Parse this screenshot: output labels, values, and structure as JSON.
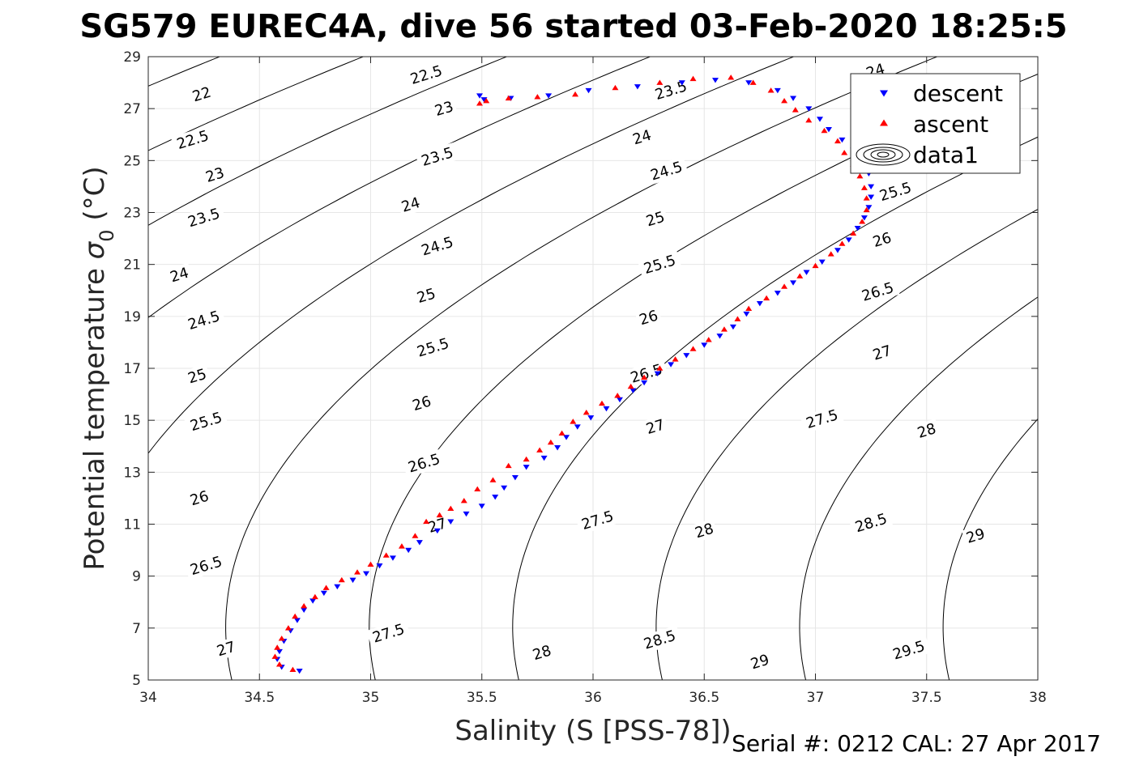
{
  "chart_data": {
    "type": "scatter",
    "title": "SG579 EUREC4A, dive 56 started 03-Feb-2020 18:25:5",
    "xlabel": "Salinity (S [PSS-78])",
    "ylabel": "Potential temperature",
    "ylabel_symbol": "σ",
    "ylabel_subscript": "0",
    "ylabel_unit": "(°C)",
    "xlim": [
      34,
      38
    ],
    "ylim": [
      5,
      29
    ],
    "x_ticks": [
      34,
      34.5,
      35,
      35.5,
      36,
      36.5,
      37,
      37.5,
      38
    ],
    "x_tick_labels": [
      "34",
      "34.5",
      "35",
      "35.5",
      "36",
      "36.5",
      "37",
      "37.5",
      "38"
    ],
    "y_ticks": [
      5,
      7,
      9,
      11,
      13,
      15,
      17,
      19,
      21,
      23,
      25,
      27,
      29
    ],
    "y_tick_labels": [
      "5",
      "7",
      "9",
      "11",
      "13",
      "15",
      "17",
      "19",
      "21",
      "23",
      "25",
      "27",
      "29"
    ],
    "grid": true,
    "legend_position": "top-right",
    "legend": [
      {
        "label": "descent",
        "marker": "triangle-down",
        "color": "#0000ff"
      },
      {
        "label": "ascent",
        "marker": "triangle-up",
        "color": "#ff0000"
      },
      {
        "label": "data1",
        "marker": "contour",
        "color": "#000000"
      }
    ],
    "contours": {
      "levels": [
        22,
        22.5,
        23,
        23.5,
        24,
        24.5,
        25,
        25.5,
        26,
        26.5,
        27,
        27.5,
        28,
        28.5,
        29,
        29.5
      ],
      "labels": [
        {
          "text": "22",
          "s": 34.24,
          "t": 27.55
        },
        {
          "text": "22.5",
          "s": 34.2,
          "t": 25.8
        },
        {
          "text": "23",
          "s": 34.3,
          "t": 24.45
        },
        {
          "text": "23.5",
          "s": 34.25,
          "t": 22.8
        },
        {
          "text": "24",
          "s": 34.14,
          "t": 20.6
        },
        {
          "text": "24.5",
          "s": 34.25,
          "t": 18.85
        },
        {
          "text": "25",
          "s": 34.22,
          "t": 16.7
        },
        {
          "text": "25.5",
          "s": 34.26,
          "t": 14.95
        },
        {
          "text": "26",
          "s": 34.23,
          "t": 12
        },
        {
          "text": "26.5",
          "s": 34.26,
          "t": 9.4
        },
        {
          "text": "27",
          "s": 34.35,
          "t": 6.2
        },
        {
          "text": "22.5",
          "s": 35.25,
          "t": 28.3
        },
        {
          "text": "23",
          "s": 35.33,
          "t": 27
        },
        {
          "text": "23.5",
          "s": 35.3,
          "t": 25.15
        },
        {
          "text": "24",
          "s": 35.18,
          "t": 23.3
        },
        {
          "text": "24.5",
          "s": 35.3,
          "t": 21.7
        },
        {
          "text": "25",
          "s": 35.25,
          "t": 19.8
        },
        {
          "text": "25.5",
          "s": 35.28,
          "t": 17.8
        },
        {
          "text": "26",
          "s": 35.23,
          "t": 15.65
        },
        {
          "text": "26.5",
          "s": 35.24,
          "t": 13.35
        },
        {
          "text": "27",
          "s": 35.3,
          "t": 10.95
        },
        {
          "text": "27.5",
          "s": 35.08,
          "t": 6.8
        },
        {
          "text": "23.5",
          "s": 36.35,
          "t": 27.7
        },
        {
          "text": "24",
          "s": 36.22,
          "t": 25.9
        },
        {
          "text": "24.5",
          "s": 36.33,
          "t": 24.6
        },
        {
          "text": "25",
          "s": 36.28,
          "t": 22.75
        },
        {
          "text": "25.5",
          "s": 36.3,
          "t": 21
        },
        {
          "text": "26",
          "s": 36.25,
          "t": 18.95
        },
        {
          "text": "26.5",
          "s": 36.24,
          "t": 16.8
        },
        {
          "text": "27",
          "s": 36.28,
          "t": 14.75
        },
        {
          "text": "27.5",
          "s": 36.02,
          "t": 11.15
        },
        {
          "text": "28",
          "s": 35.77,
          "t": 6.05
        },
        {
          "text": "24",
          "s": 37.27,
          "t": 28.45
        },
        {
          "text": "25.5",
          "s": 37.36,
          "t": 23.8
        },
        {
          "text": "26",
          "s": 37.3,
          "t": 21.95
        },
        {
          "text": "26.5",
          "s": 37.28,
          "t": 19.95
        },
        {
          "text": "27",
          "s": 37.3,
          "t": 17.6
        },
        {
          "text": "27.5",
          "s": 37.03,
          "t": 15.05
        },
        {
          "text": "28",
          "s": 36.5,
          "t": 10.75
        },
        {
          "text": "28.5",
          "s": 36.3,
          "t": 6.55
        },
        {
          "text": "28",
          "s": 37.5,
          "t": 14.6
        },
        {
          "text": "28.5",
          "s": 37.25,
          "t": 11.05
        },
        {
          "text": "29",
          "s": 36.75,
          "t": 5.7
        },
        {
          "text": "29",
          "s": 37.72,
          "t": 10.55
        },
        {
          "text": "29.5",
          "s": 37.42,
          "t": 6.15
        }
      ]
    },
    "series": [
      {
        "name": "descent",
        "marker": "triangle-down",
        "color": "#0000ff",
        "points": [
          [
            34.68,
            5.35
          ],
          [
            34.6,
            5.5
          ],
          [
            34.58,
            5.8
          ],
          [
            34.59,
            6.1
          ],
          [
            34.61,
            6.5
          ],
          [
            34.64,
            6.9
          ],
          [
            34.67,
            7.3
          ],
          [
            34.7,
            7.7
          ],
          [
            34.74,
            8.05
          ],
          [
            34.79,
            8.35
          ],
          [
            34.85,
            8.6
          ],
          [
            34.92,
            8.85
          ],
          [
            34.98,
            9.1
          ],
          [
            35.04,
            9.4
          ],
          [
            35.1,
            9.7
          ],
          [
            35.17,
            10
          ],
          [
            35.22,
            10.3
          ],
          [
            35.3,
            10.75
          ],
          [
            35.36,
            11.1
          ],
          [
            35.43,
            11.4
          ],
          [
            35.5,
            11.7
          ],
          [
            35.56,
            12.05
          ],
          [
            35.6,
            12.4
          ],
          [
            35.65,
            12.8
          ],
          [
            35.7,
            13.2
          ],
          [
            35.78,
            13.55
          ],
          [
            35.84,
            13.95
          ],
          [
            35.88,
            14.35
          ],
          [
            35.93,
            14.75
          ],
          [
            35.99,
            15.1
          ],
          [
            36.06,
            15.45
          ],
          [
            36.12,
            15.8
          ],
          [
            36.18,
            16.15
          ],
          [
            36.23,
            16.45
          ],
          [
            36.29,
            16.8
          ],
          [
            36.35,
            17.15
          ],
          [
            36.42,
            17.5
          ],
          [
            36.5,
            17.9
          ],
          [
            36.57,
            18.25
          ],
          [
            36.63,
            18.6
          ],
          [
            36.69,
            19.1
          ],
          [
            36.75,
            19.5
          ],
          [
            36.83,
            19.9
          ],
          [
            36.9,
            20.3
          ],
          [
            36.96,
            20.7
          ],
          [
            37.03,
            21.1
          ],
          [
            37.1,
            21.55
          ],
          [
            37.15,
            21.95
          ],
          [
            37.19,
            22.4
          ],
          [
            37.22,
            22.8
          ],
          [
            37.24,
            23.2
          ],
          [
            37.25,
            23.6
          ],
          [
            37.25,
            24
          ],
          [
            37.24,
            24.5
          ],
          [
            37.22,
            25
          ],
          [
            37.17,
            25.4
          ],
          [
            37.12,
            25.8
          ],
          [
            37.06,
            26.2
          ],
          [
            37.02,
            26.6
          ],
          [
            36.97,
            27
          ],
          [
            36.9,
            27.4
          ],
          [
            36.83,
            27.7
          ],
          [
            36.7,
            28
          ],
          [
            36.55,
            28.1
          ],
          [
            36.4,
            28
          ],
          [
            36.2,
            27.85
          ],
          [
            35.98,
            27.7
          ],
          [
            35.8,
            27.5
          ],
          [
            35.63,
            27.4
          ],
          [
            35.51,
            27.35
          ],
          [
            35.49,
            27.5
          ]
        ]
      },
      {
        "name": "ascent",
        "marker": "triangle-up",
        "color": "#ff0000",
        "points": [
          [
            34.65,
            5.4
          ],
          [
            34.59,
            5.6
          ],
          [
            34.57,
            5.9
          ],
          [
            34.58,
            6.25
          ],
          [
            34.6,
            6.6
          ],
          [
            34.63,
            7
          ],
          [
            34.66,
            7.45
          ],
          [
            34.7,
            7.85
          ],
          [
            34.75,
            8.2
          ],
          [
            34.8,
            8.55
          ],
          [
            34.87,
            8.85
          ],
          [
            34.94,
            9.15
          ],
          [
            35,
            9.45
          ],
          [
            35.07,
            9.8
          ],
          [
            35.14,
            10.15
          ],
          [
            35.2,
            10.55
          ],
          [
            35.25,
            11.1
          ],
          [
            35.31,
            11.35
          ],
          [
            35.36,
            11.6
          ],
          [
            35.42,
            11.9
          ],
          [
            35.48,
            12.35
          ],
          [
            35.55,
            12.7
          ],
          [
            35.62,
            13.25
          ],
          [
            35.7,
            13.5
          ],
          [
            35.76,
            13.85
          ],
          [
            35.81,
            14.15
          ],
          [
            35.86,
            14.5
          ],
          [
            35.91,
            14.95
          ],
          [
            35.97,
            15.3
          ],
          [
            36.04,
            15.65
          ],
          [
            36.11,
            15.95
          ],
          [
            36.17,
            16.3
          ],
          [
            36.23,
            16.65
          ],
          [
            36.3,
            17
          ],
          [
            36.37,
            17.35
          ],
          [
            36.45,
            17.75
          ],
          [
            36.52,
            18.1
          ],
          [
            36.59,
            18.5
          ],
          [
            36.65,
            18.9
          ],
          [
            36.7,
            19.3
          ],
          [
            36.78,
            19.7
          ],
          [
            36.86,
            20.15
          ],
          [
            36.93,
            20.55
          ],
          [
            37,
            20.95
          ],
          [
            37.07,
            21.4
          ],
          [
            37.12,
            21.8
          ],
          [
            37.17,
            22.2
          ],
          [
            37.21,
            22.65
          ],
          [
            37.23,
            23.1
          ],
          [
            37.23,
            23.55
          ],
          [
            37.22,
            23.95
          ],
          [
            37.2,
            24.4
          ],
          [
            37.17,
            24.85
          ],
          [
            37.13,
            25.3
          ],
          [
            37.1,
            25.75
          ],
          [
            37.04,
            26.15
          ],
          [
            36.97,
            26.55
          ],
          [
            36.91,
            26.95
          ],
          [
            36.86,
            27.3
          ],
          [
            36.8,
            27.7
          ],
          [
            36.72,
            28
          ],
          [
            36.62,
            28.2
          ],
          [
            36.45,
            28.15
          ],
          [
            36.3,
            28
          ],
          [
            36.1,
            27.8
          ],
          [
            35.92,
            27.55
          ],
          [
            35.75,
            27.45
          ],
          [
            35.62,
            27.4
          ],
          [
            35.52,
            27.3
          ],
          [
            35.49,
            27.2
          ]
        ]
      }
    ]
  },
  "footer": {
    "serial_text": "Serial #: 0212  CAL: 27 Apr 2017"
  }
}
